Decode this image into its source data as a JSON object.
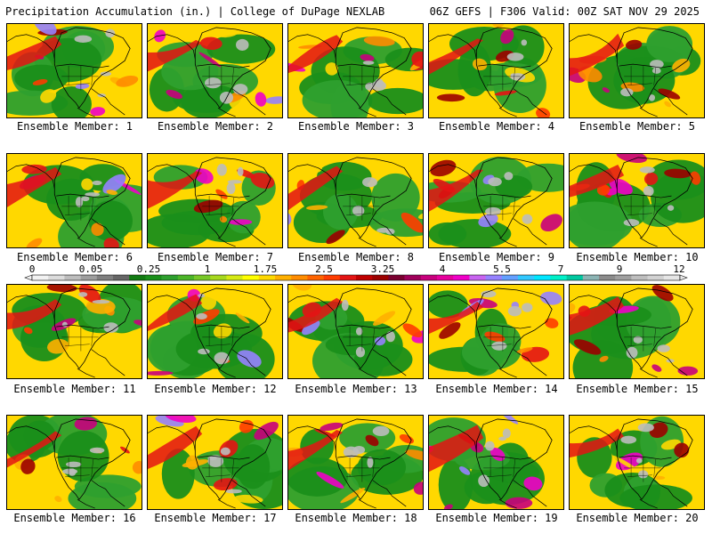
{
  "header": {
    "title_left": "Precipitation Accumulation (in.) | College of DuPage NEXLAB",
    "title_right": "06Z GEFS | F306 Valid: 00Z SAT NOV 29 2025"
  },
  "panels": [
    {
      "label": "Ensemble Member: 1"
    },
    {
      "label": "Ensemble Member: 2"
    },
    {
      "label": "Ensemble Member: 3"
    },
    {
      "label": "Ensemble Member: 4"
    },
    {
      "label": "Ensemble Member: 5"
    },
    {
      "label": "Ensemble Member: 6"
    },
    {
      "label": "Ensemble Member: 7"
    },
    {
      "label": "Ensemble Member: 8"
    },
    {
      "label": "Ensemble Member: 9"
    },
    {
      "label": "Ensemble Member: 10"
    },
    {
      "label": "Ensemble Member: 11"
    },
    {
      "label": "Ensemble Member: 12"
    },
    {
      "label": "Ensemble Member: 13"
    },
    {
      "label": "Ensemble Member: 14"
    },
    {
      "label": "Ensemble Member: 15"
    },
    {
      "label": "Ensemble Member: 16"
    },
    {
      "label": "Ensemble Member: 17"
    },
    {
      "label": "Ensemble Member: 18"
    },
    {
      "label": "Ensemble Member: 19"
    },
    {
      "label": "Ensemble Member: 20"
    }
  ],
  "legend": {
    "ticks": [
      "0",
      "0.05",
      "0.25",
      "1",
      "1.75",
      "2.5",
      "3.25",
      "4",
      "5.5",
      "7",
      "9",
      "12"
    ],
    "colors": [
      "#f2f2f2",
      "#dcdcdc",
      "#bdbdbd",
      "#9e9e9e",
      "#7f7f7f",
      "#666666",
      "#117a11",
      "#1a8f1a",
      "#2ea02e",
      "#4cb528",
      "#78c828",
      "#a6d81e",
      "#d6ea14",
      "#ffff00",
      "#ffd800",
      "#ffb000",
      "#ff8c00",
      "#ff6400",
      "#ff3c00",
      "#e41414",
      "#c00000",
      "#9c0000",
      "#7a0030",
      "#a0005a",
      "#c8007d",
      "#e6009c",
      "#f000c8",
      "#c864f0",
      "#9682ff",
      "#64a0ff",
      "#32c8ff",
      "#00e6ff",
      "#00f0c8",
      "#00c8a0",
      "#8cb4b4",
      "#8c8c8c",
      "#a0a0a0",
      "#bebebe",
      "#d2d2d2",
      "#e6e6e6"
    ]
  }
}
